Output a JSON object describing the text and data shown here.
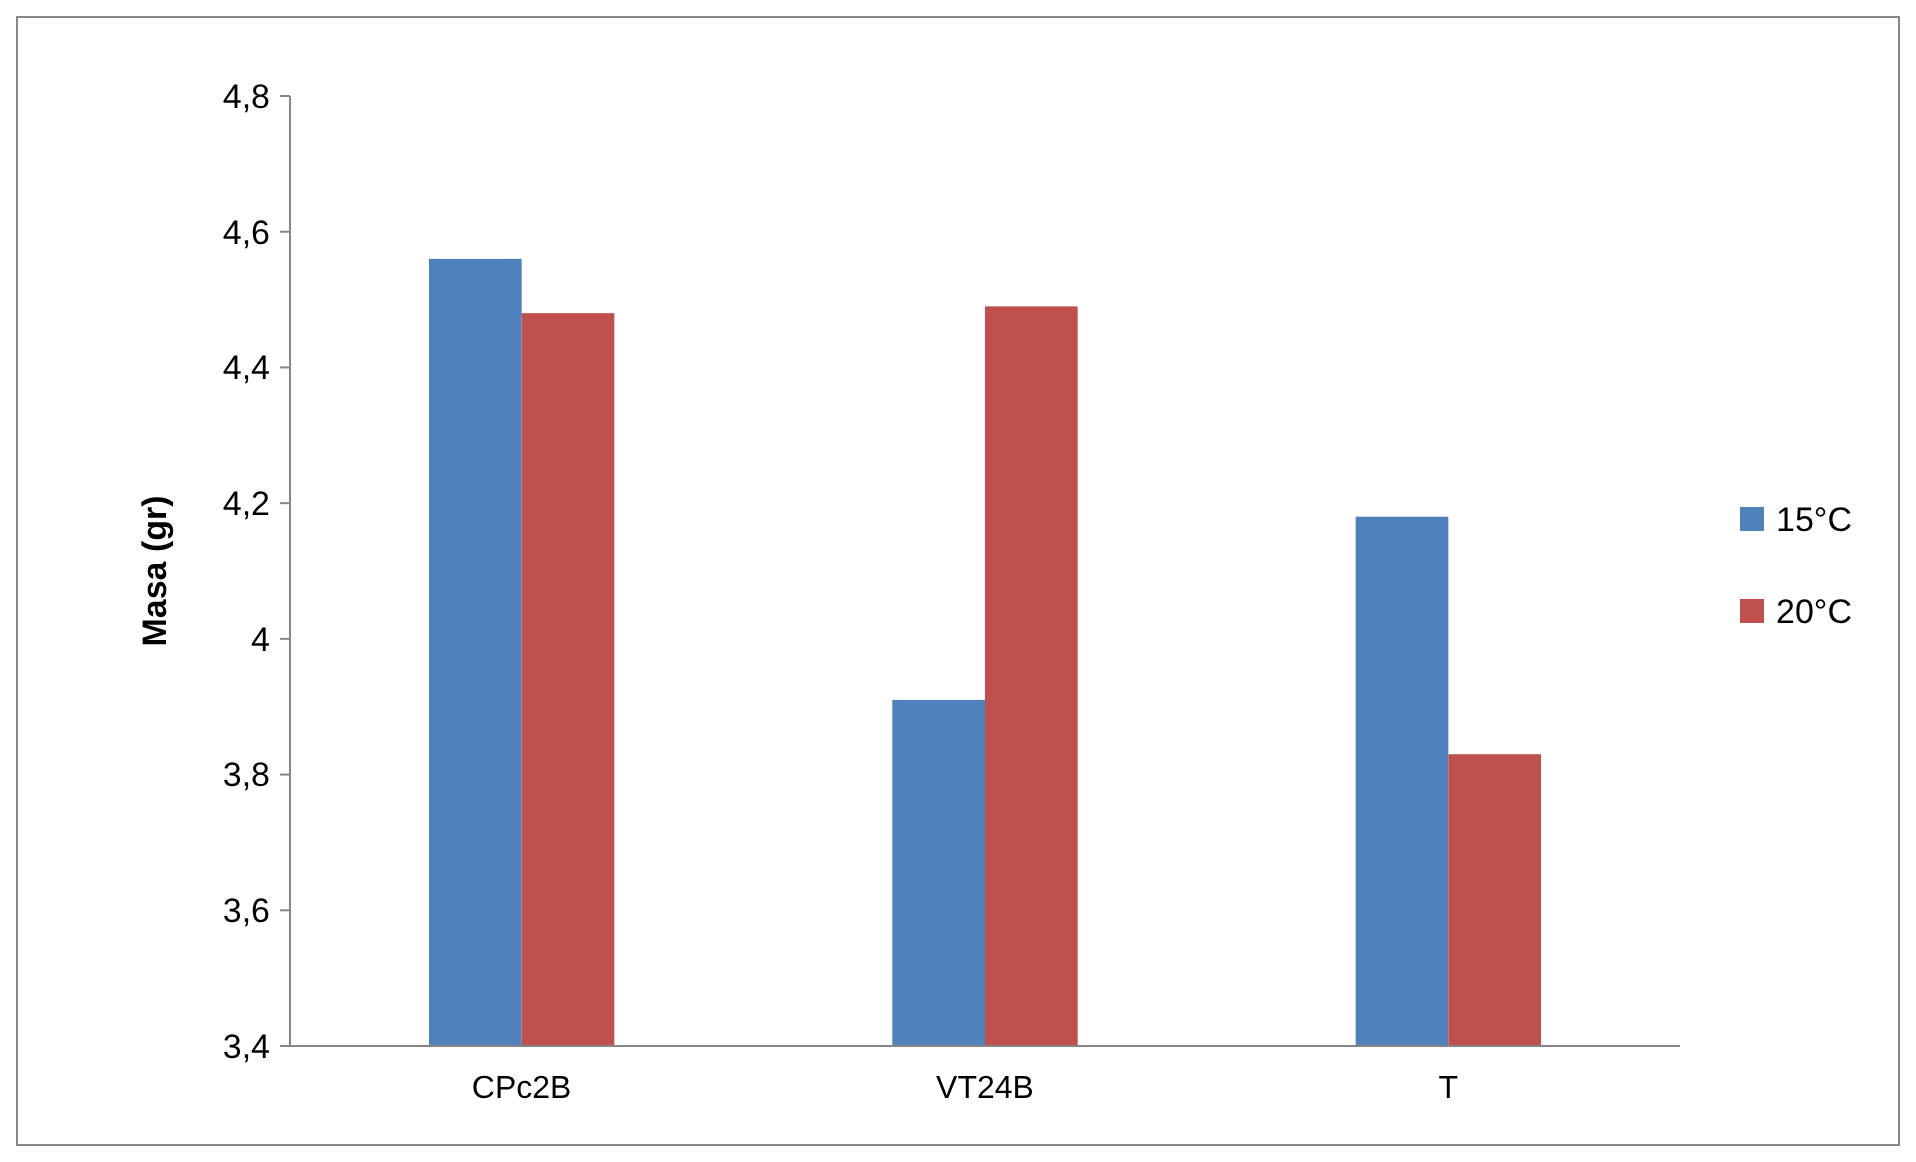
{
  "chart_data": {
    "type": "bar",
    "ylabel": "Masa (gr)",
    "categories": [
      "CPc2B",
      "VT24B",
      "T"
    ],
    "series": [
      {
        "name": "15°C",
        "color": "#4f81bd",
        "values": [
          4.56,
          3.91,
          4.18
        ]
      },
      {
        "name": "20°C",
        "color": "#c0504d",
        "values": [
          4.48,
          4.49,
          3.83
        ]
      }
    ],
    "ylim": [
      3.4,
      4.8
    ],
    "yticks": [
      {
        "value": 3.4,
        "label": "3,4"
      },
      {
        "value": 3.6,
        "label": "3,6"
      },
      {
        "value": 3.8,
        "label": "3,8"
      },
      {
        "value": 4,
        "label": "4"
      },
      {
        "value": 4.2,
        "label": "4,2"
      },
      {
        "value": 4.4,
        "label": "4,4"
      },
      {
        "value": 4.6,
        "label": "4,6"
      },
      {
        "value": 4.8,
        "label": "4,8"
      }
    ],
    "grid": false,
    "legend": "right"
  }
}
